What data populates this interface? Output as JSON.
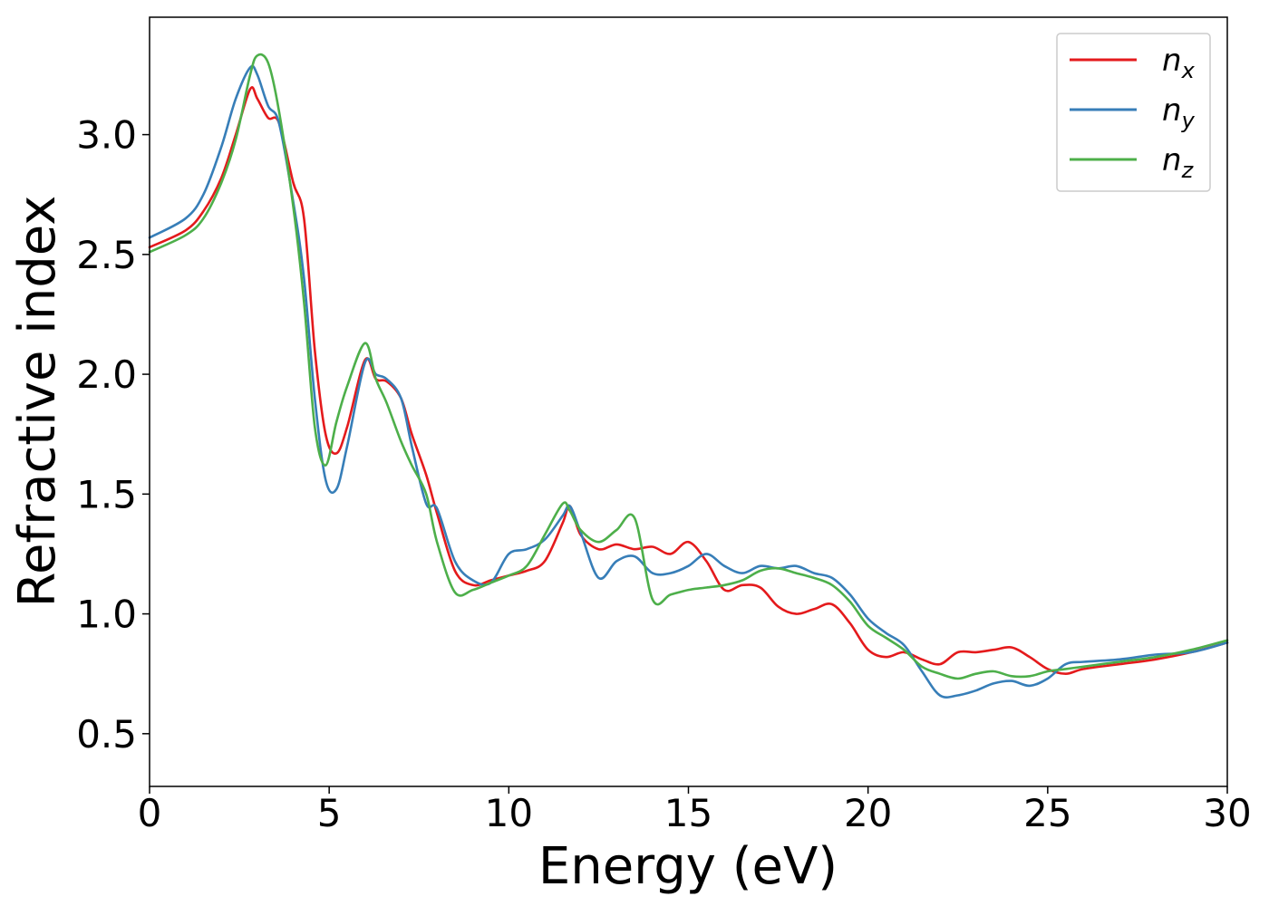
{
  "chart_data": {
    "type": "line",
    "title": "",
    "xlabel": "Energy (eV)",
    "ylabel": "Refractive index",
    "xlim": [
      0,
      30
    ],
    "ylim": [
      0.28,
      3.49
    ],
    "xticks": [
      0,
      5,
      10,
      15,
      20,
      25,
      30
    ],
    "xtick_labels": [
      "0",
      "5",
      "10",
      "15",
      "20",
      "25",
      "30"
    ],
    "yticks": [
      0.5,
      1.0,
      1.5,
      2.0,
      2.5,
      3.0
    ],
    "ytick_labels": [
      "0.5",
      "1.0",
      "1.5",
      "2.0",
      "2.5",
      "3.0"
    ],
    "grid": false,
    "legend_position": "top-right",
    "series": [
      {
        "name": "n_x",
        "legend_base": "n",
        "legend_sub": "x",
        "color": "#e41a1c",
        "x": [
          0,
          1,
          1.5,
          2,
          2.4,
          2.8,
          3.0,
          3.3,
          3.6,
          4.0,
          4.3,
          4.6,
          4.9,
          5.2,
          5.5,
          6.0,
          6.3,
          6.6,
          7.0,
          7.3,
          7.7,
          8.0,
          8.5,
          9.0,
          9.5,
          10.0,
          10.5,
          11.0,
          11.5,
          11.7,
          12.0,
          12.5,
          13.0,
          13.5,
          14.0,
          14.5,
          15.0,
          15.5,
          16.0,
          16.5,
          17.0,
          17.5,
          18.0,
          18.5,
          19.0,
          19.5,
          20.0,
          20.5,
          21.0,
          21.5,
          22.0,
          22.5,
          23.0,
          23.5,
          24.0,
          24.5,
          25.0,
          25.5,
          26.0,
          27.0,
          28.0,
          29.0,
          30.0
        ],
        "y": [
          2.53,
          2.6,
          2.68,
          2.82,
          3.0,
          3.19,
          3.15,
          3.07,
          3.05,
          2.8,
          2.65,
          2.1,
          1.75,
          1.67,
          1.78,
          2.06,
          1.98,
          1.97,
          1.9,
          1.75,
          1.58,
          1.42,
          1.18,
          1.12,
          1.14,
          1.16,
          1.18,
          1.22,
          1.38,
          1.45,
          1.33,
          1.27,
          1.29,
          1.27,
          1.28,
          1.25,
          1.3,
          1.22,
          1.1,
          1.12,
          1.11,
          1.03,
          1.0,
          1.02,
          1.04,
          0.96,
          0.85,
          0.82,
          0.84,
          0.81,
          0.79,
          0.84,
          0.84,
          0.85,
          0.86,
          0.82,
          0.77,
          0.75,
          0.77,
          0.79,
          0.81,
          0.84,
          0.88
        ]
      },
      {
        "name": "n_y",
        "legend_base": "n",
        "legend_sub": "y",
        "color": "#377eb8",
        "x": [
          0,
          1,
          1.5,
          2,
          2.4,
          2.8,
          3.0,
          3.3,
          3.6,
          4.0,
          4.3,
          4.6,
          4.9,
          5.2,
          5.5,
          6.0,
          6.3,
          6.6,
          7.0,
          7.3,
          7.7,
          8.0,
          8.5,
          9.0,
          9.5,
          10.0,
          10.5,
          11.0,
          11.5,
          11.7,
          12.0,
          12.5,
          13.0,
          13.5,
          14.0,
          14.5,
          15.0,
          15.5,
          16.0,
          16.5,
          17.0,
          17.5,
          18.0,
          18.5,
          19.0,
          19.5,
          20.0,
          20.5,
          21.0,
          21.5,
          22.0,
          22.5,
          23.0,
          23.5,
          24.0,
          24.5,
          25.0,
          25.5,
          26.0,
          27.0,
          28.0,
          29.0,
          30.0
        ],
        "y": [
          2.57,
          2.65,
          2.75,
          2.95,
          3.15,
          3.28,
          3.25,
          3.12,
          3.05,
          2.72,
          2.4,
          1.9,
          1.56,
          1.52,
          1.7,
          2.05,
          2.0,
          1.98,
          1.9,
          1.7,
          1.46,
          1.44,
          1.22,
          1.14,
          1.13,
          1.25,
          1.27,
          1.31,
          1.41,
          1.45,
          1.34,
          1.15,
          1.22,
          1.24,
          1.17,
          1.17,
          1.2,
          1.25,
          1.2,
          1.17,
          1.2,
          1.19,
          1.2,
          1.17,
          1.15,
          1.08,
          0.98,
          0.92,
          0.87,
          0.76,
          0.66,
          0.66,
          0.68,
          0.71,
          0.72,
          0.7,
          0.73,
          0.79,
          0.8,
          0.81,
          0.83,
          0.84,
          0.88
        ]
      },
      {
        "name": "n_z",
        "legend_base": "n",
        "legend_sub": "z",
        "color": "#4daf4a",
        "x": [
          0,
          1,
          1.5,
          2,
          2.4,
          2.8,
          3.0,
          3.3,
          3.6,
          4.0,
          4.3,
          4.6,
          4.9,
          5.2,
          5.5,
          6.0,
          6.3,
          6.6,
          7.0,
          7.3,
          7.7,
          8.0,
          8.5,
          9.0,
          9.5,
          10.0,
          10.5,
          11.0,
          11.5,
          11.7,
          12.0,
          12.5,
          13.0,
          13.5,
          14.0,
          14.5,
          15.0,
          15.5,
          16.0,
          16.5,
          17.0,
          17.5,
          18.0,
          18.5,
          19.0,
          19.5,
          20.0,
          20.5,
          21.0,
          21.5,
          22.0,
          22.5,
          23.0,
          23.5,
          24.0,
          24.5,
          25.0,
          25.5,
          26.0,
          27.0,
          28.0,
          29.0,
          30.0
        ],
        "y": [
          2.51,
          2.58,
          2.65,
          2.8,
          2.98,
          3.25,
          3.33,
          3.3,
          3.1,
          2.7,
          2.3,
          1.78,
          1.62,
          1.8,
          1.95,
          2.13,
          1.98,
          1.88,
          1.72,
          1.62,
          1.5,
          1.3,
          1.09,
          1.1,
          1.13,
          1.16,
          1.2,
          1.33,
          1.46,
          1.43,
          1.35,
          1.3,
          1.35,
          1.4,
          1.06,
          1.08,
          1.1,
          1.11,
          1.12,
          1.14,
          1.18,
          1.19,
          1.17,
          1.15,
          1.12,
          1.05,
          0.95,
          0.9,
          0.85,
          0.78,
          0.75,
          0.73,
          0.75,
          0.76,
          0.74,
          0.74,
          0.76,
          0.77,
          0.78,
          0.8,
          0.82,
          0.85,
          0.89
        ]
      }
    ]
  }
}
